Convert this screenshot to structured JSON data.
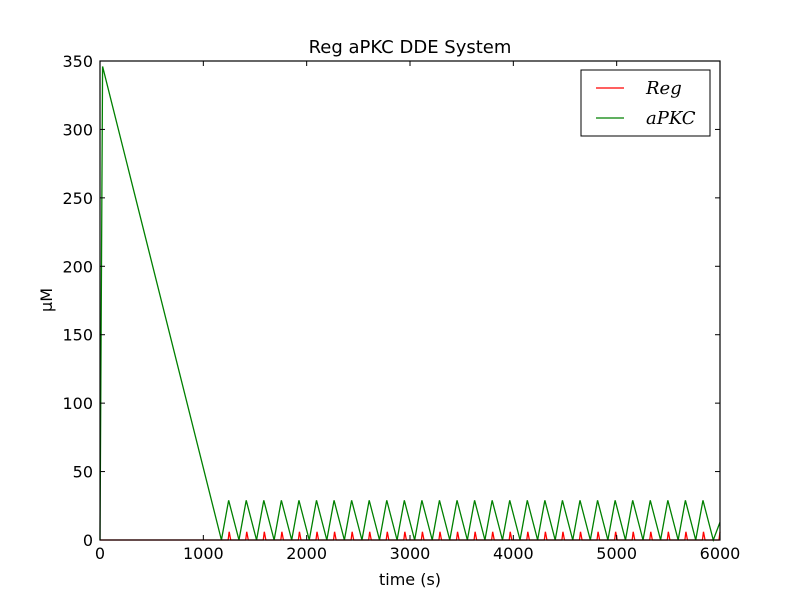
{
  "chart_data": {
    "type": "line",
    "title": "Reg aPKC DDE System",
    "xlabel": "time (s)",
    "ylabel": "μM",
    "xlim": [
      0,
      6000
    ],
    "ylim": [
      0,
      350
    ],
    "xticks": [
      0,
      1000,
      2000,
      3000,
      4000,
      5000,
      6000
    ],
    "yticks": [
      0,
      50,
      100,
      150,
      200,
      250,
      300,
      350
    ],
    "grid": false,
    "legend": {
      "position": "top-right",
      "entries": [
        "Reg",
        "aPKC"
      ]
    },
    "series": [
      {
        "name": "Reg",
        "color": "#ff0000",
        "x": [
          0,
          1175,
          1240,
          1250,
          1265,
          1410,
          1420,
          1435,
          1580,
          1590,
          1605,
          1750,
          1760,
          1775,
          1920,
          1930,
          1945,
          2090,
          2100,
          2115,
          2260,
          2270,
          2285,
          2430,
          2440,
          2455,
          2600,
          2610,
          2625,
          2770,
          2780,
          2795,
          2940,
          2950,
          2965,
          3110,
          3120,
          3135,
          3280,
          3290,
          3305,
          3450,
          3460,
          3475,
          3620,
          3630,
          3645,
          3790,
          3800,
          3815,
          3960,
          3970,
          3985,
          4130,
          4140,
          4155,
          4300,
          4310,
          4325,
          4470,
          4480,
          4495,
          4640,
          4650,
          4665,
          4810,
          4820,
          4835,
          4980,
          4990,
          5005,
          5150,
          5160,
          5175,
          5320,
          5330,
          5345,
          5490,
          5500,
          5515,
          5660,
          5670,
          5685,
          5830,
          5840,
          5855,
          5990,
          6000
        ],
        "y": [
          0,
          0,
          0,
          6,
          0,
          0,
          6,
          0,
          0,
          6,
          0,
          0,
          6,
          0,
          0,
          6,
          0,
          0,
          6,
          0,
          0,
          6,
          0,
          0,
          6,
          0,
          0,
          6,
          0,
          0,
          6,
          0,
          0,
          6,
          0,
          0,
          6,
          0,
          0,
          6,
          0,
          0,
          6,
          0,
          0,
          6,
          0,
          0,
          6,
          0,
          0,
          6,
          0,
          0,
          6,
          0,
          0,
          6,
          0,
          0,
          6,
          0,
          0,
          6,
          0,
          0,
          6,
          0,
          0,
          6,
          0,
          0,
          6,
          0,
          0,
          6,
          0,
          0,
          6,
          0,
          0,
          6,
          0,
          0,
          6,
          0,
          0,
          6
        ]
      },
      {
        "name": "aPKC",
        "color": "#008000",
        "x": [
          0,
          25,
          1175,
          1245,
          1345,
          1415,
          1515,
          1585,
          1685,
          1755,
          1855,
          1925,
          2025,
          2095,
          2195,
          2265,
          2365,
          2435,
          2535,
          2605,
          2705,
          2775,
          2875,
          2945,
          3045,
          3115,
          3215,
          3285,
          3385,
          3455,
          3555,
          3625,
          3725,
          3795,
          3895,
          3965,
          4065,
          4135,
          4235,
          4305,
          4405,
          4475,
          4575,
          4645,
          4745,
          4815,
          4915,
          4985,
          5085,
          5155,
          5255,
          5325,
          5425,
          5495,
          5595,
          5665,
          5765,
          5835,
          5935,
          6000
        ],
        "y": [
          0,
          346,
          0,
          29,
          0,
          29,
          0,
          29,
          0,
          29,
          0,
          29,
          0,
          29,
          0,
          29,
          0,
          29,
          0,
          29,
          0,
          29,
          0,
          29,
          0,
          29,
          0,
          29,
          0,
          29,
          0,
          29,
          0,
          29,
          0,
          29,
          0,
          29,
          0,
          29,
          0,
          29,
          0,
          29,
          0,
          29,
          0,
          29,
          0,
          29,
          0,
          29,
          0,
          29,
          0,
          29,
          0,
          29,
          0,
          13
        ]
      }
    ]
  }
}
